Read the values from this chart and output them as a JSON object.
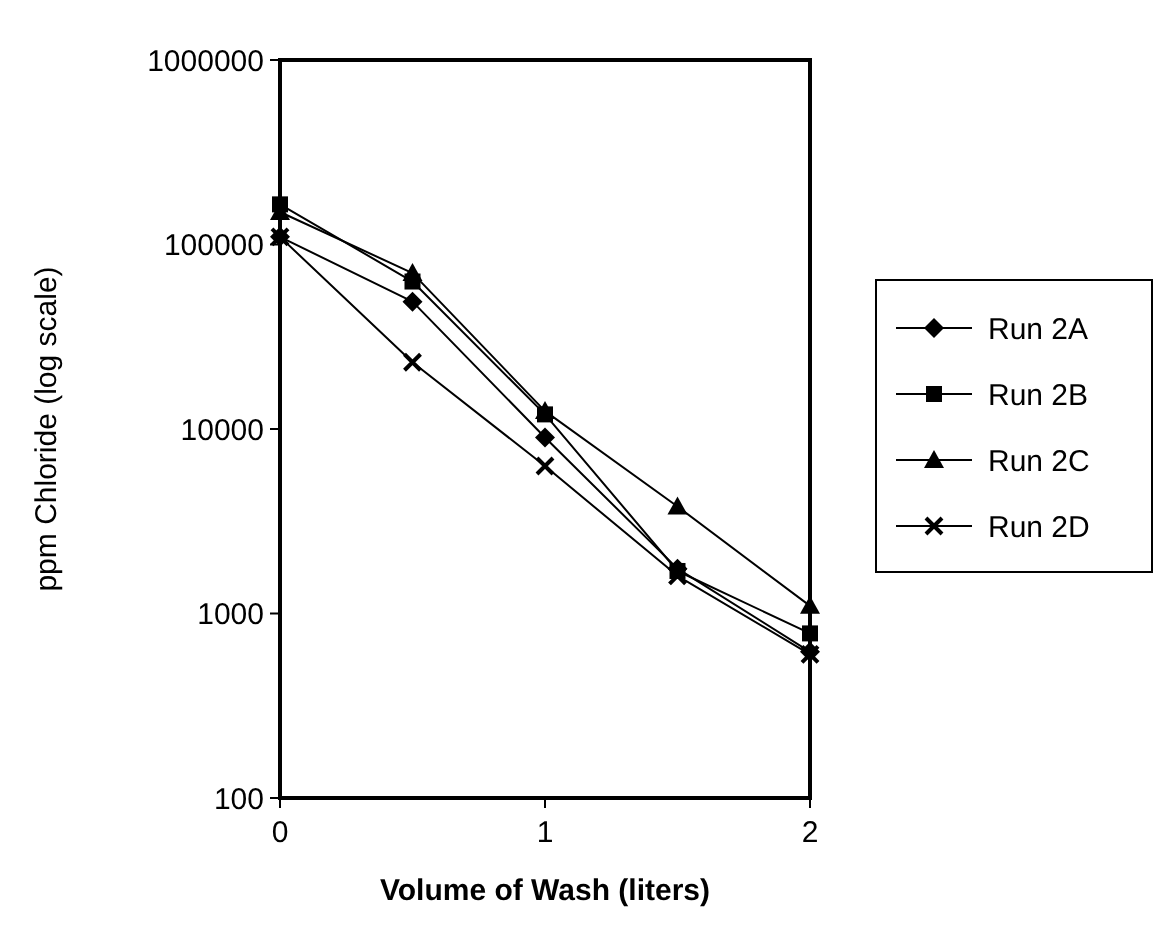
{
  "chart_data": {
    "type": "line",
    "xlabel": "Volume of Wash (liters)",
    "ylabel": "ppm Chloride (log scale)",
    "log": "y",
    "xlim": [
      0,
      2
    ],
    "xticks": [
      0,
      1,
      2
    ],
    "ylim": [
      100,
      1000000
    ],
    "yticks": [
      100,
      1000,
      10000,
      100000,
      1000000
    ],
    "grid": false,
    "legend": "right",
    "x": [
      0,
      0.5,
      1,
      1.5,
      2
    ],
    "series": [
      {
        "name": "Run 2A",
        "color": "#000000",
        "marker": "diamond",
        "values": [
          110000,
          49000,
          9000,
          1750,
          620
        ]
      },
      {
        "name": "Run 2B",
        "color": "#000000",
        "marker": "square",
        "values": [
          165000,
          63000,
          12000,
          1700,
          780
        ]
      },
      {
        "name": "Run 2C",
        "color": "#000000",
        "marker": "triangle",
        "values": [
          150000,
          70000,
          12500,
          3800,
          1100
        ]
      },
      {
        "name": "Run 2D",
        "color": "#000000",
        "marker": "cross",
        "values": [
          110000,
          23000,
          6300,
          1600,
          600
        ]
      }
    ]
  }
}
